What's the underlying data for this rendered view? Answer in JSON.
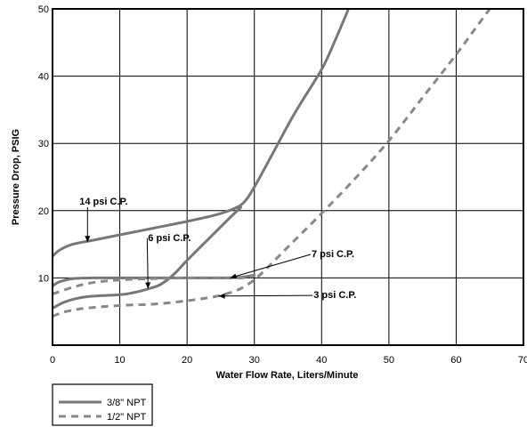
{
  "chart_data": {
    "type": "line",
    "xlabel": "Water Flow Rate, Liters/Minute",
    "ylabel": "Pressure Drop, PSIG",
    "xlim": [
      0,
      70
    ],
    "ylim": [
      0,
      50
    ],
    "xticks": [
      "0",
      "10",
      "20",
      "30",
      "40",
      "50",
      "60",
      "70"
    ],
    "yticks": [
      "10",
      "20",
      "30",
      "40",
      "50"
    ],
    "grid": true,
    "legend_position": "bottom-left",
    "series": [
      {
        "name": "3/8\" NPT",
        "style": "solid",
        "color": "#777777",
        "curves": [
          [
            [
              0,
              13.2
            ],
            [
              1,
              14.1
            ],
            [
              3,
              15.0
            ],
            [
              6,
              15.6
            ],
            [
              10,
              16.4
            ],
            [
              15,
              17.4
            ],
            [
              20,
              18.4
            ],
            [
              24,
              19.3
            ],
            [
              27,
              20.3
            ],
            [
              28.5,
              21.3
            ],
            [
              30,
              23.5
            ],
            [
              33,
              29
            ],
            [
              36,
              34.5
            ],
            [
              40,
              41
            ],
            [
              42,
              45.3
            ],
            [
              44,
              50
            ]
          ],
          [
            [
              0,
              5.5
            ],
            [
              2,
              6.5
            ],
            [
              5,
              7.2
            ],
            [
              10,
              7.5
            ],
            [
              12,
              7.8
            ],
            [
              14,
              8.3
            ],
            [
              16,
              9.0
            ],
            [
              18,
              10.5
            ],
            [
              20,
              12.6
            ],
            [
              23,
              15.6
            ],
            [
              26,
              18.6
            ],
            [
              28,
              20.5
            ]
          ],
          [
            [
              0,
              8.8
            ],
            [
              1,
              9.4
            ],
            [
              3,
              9.9
            ],
            [
              6,
              10.0
            ],
            [
              10,
              10.0
            ],
            [
              15,
              10.0
            ],
            [
              20,
              10.0
            ],
            [
              25,
              10.0
            ],
            [
              28,
              10.1
            ],
            [
              30,
              10.4
            ]
          ]
        ]
      },
      {
        "name": "1/2\" NPT",
        "style": "dashed",
        "color": "#888888",
        "curves": [
          [
            [
              0,
              4.3
            ],
            [
              2,
              5.0
            ],
            [
              5,
              5.5
            ],
            [
              10,
              5.9
            ],
            [
              15,
              6.1
            ],
            [
              20,
              6.6
            ],
            [
              24,
              7.2
            ],
            [
              27,
              8.0
            ],
            [
              29,
              9.0
            ],
            [
              31,
              10.6
            ],
            [
              35,
              14.6
            ],
            [
              40,
              19.6
            ],
            [
              45,
              24.8
            ],
            [
              50,
              30.4
            ],
            [
              55,
              36.8
            ],
            [
              60,
              43.2
            ],
            [
              63,
              47.3
            ],
            [
              65,
              50
            ]
          ],
          [
            [
              0,
              7.6
            ],
            [
              3,
              8.6
            ],
            [
              6,
              9.3
            ],
            [
              10,
              9.7
            ],
            [
              15,
              9.9
            ],
            [
              20,
              10.0
            ],
            [
              25,
              10.0
            ],
            [
              28,
              10.0
            ],
            [
              30,
              10.3
            ]
          ]
        ]
      }
    ],
    "annotations": [
      {
        "text": "14 psi C.P.",
        "x": 4,
        "y": 20.9,
        "target": [
          5.2,
          15.3
        ]
      },
      {
        "text": "6 psi C.P.",
        "x": 14.2,
        "y": 15.5,
        "target": [
          14.2,
          8.4
        ]
      },
      {
        "text": "7 psi C.P.",
        "x": 38.5,
        "y": 13.1,
        "target": [
          26.4,
          10.0
        ]
      },
      {
        "text": "3 psi C.P.",
        "x": 38.8,
        "y": 7.0,
        "target": [
          24.7,
          7.3
        ]
      }
    ]
  }
}
